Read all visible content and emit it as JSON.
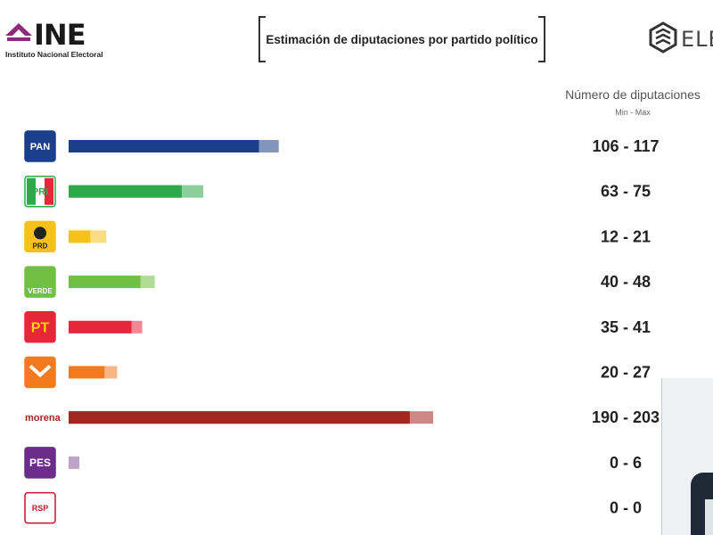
{
  "header": {
    "brand_name": "INE",
    "brand_subtitle": "Instituto Nacional Electoral",
    "title": "Estimación de diputaciones por partido político",
    "partner_logo_text": "ELEC"
  },
  "column_header": {
    "title": "Número de diputaciones",
    "subtitle": "Min - Max"
  },
  "colors": {
    "PAN": "#1b3f8b",
    "PRI": "#2ea84a",
    "PRD": "#f6c21a",
    "PVEM": "#72c043",
    "PT": "#e8263a",
    "MC": "#f47a20",
    "MORENA": "#a3271f",
    "PES": "#8b5a9e",
    "RSP": "#c8102e"
  },
  "chart_data": {
    "type": "bar",
    "orientation": "horizontal",
    "title": "Estimación de diputaciones por partido político",
    "value_column_label": "Número de diputaciones",
    "value_column_sublabel": "Min - Max",
    "categories": [
      "PAN",
      "PRI",
      "PRD",
      "PVEM",
      "PT",
      "MC",
      "MORENA",
      "PES",
      "RSP"
    ],
    "logo_text": [
      "PAN",
      "PRI",
      "PRD",
      "VERDE",
      "PT",
      "",
      "morena",
      "PES",
      "RSP"
    ],
    "series": [
      {
        "name": "Min",
        "values": [
          106,
          63,
          12,
          40,
          35,
          20,
          190,
          0,
          0
        ]
      },
      {
        "name": "Max",
        "values": [
          117,
          75,
          21,
          48,
          41,
          27,
          203,
          6,
          0
        ]
      }
    ],
    "range_labels": [
      "106 - 117",
      "63 - 75",
      "12 - 21",
      "40 - 48",
      "35 - 41",
      "20 - 27",
      "190 - 203",
      "0 - 6",
      "0 - 0"
    ],
    "xlim": [
      0,
      203
    ],
    "grid": false,
    "legend": "none"
  }
}
